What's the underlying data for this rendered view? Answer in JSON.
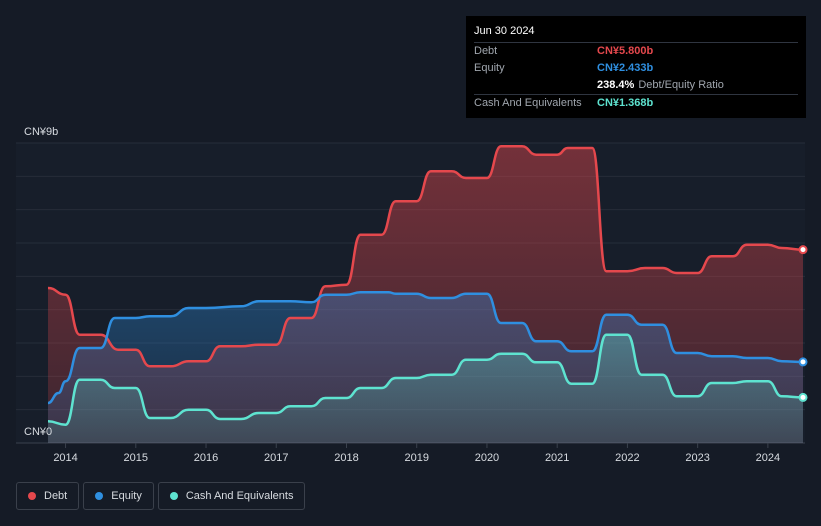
{
  "tooltip": {
    "date": "Jun 30 2024",
    "debt_label": "Debt",
    "debt_value": "CN¥5.800b",
    "equity_label": "Equity",
    "equity_value": "CN¥2.433b",
    "ratio_value": "238.4%",
    "ratio_label": "Debt/Equity Ratio",
    "cash_label": "Cash And Equivalents",
    "cash_value": "CN¥1.368b"
  },
  "legend": {
    "debt": "Debt",
    "equity": "Equity",
    "cash": "Cash And Equivalents"
  },
  "colors": {
    "debt": "#e5484d",
    "equity": "#2f8fe0",
    "cash": "#5ee3d0"
  },
  "chart_data": {
    "type": "area",
    "title": "",
    "xlabel": "",
    "ylabel": "",
    "y_top_label": "CN¥9b",
    "y_bottom_label": "CN¥0",
    "ylim": [
      0,
      9
    ],
    "xlim": [
      2013.75,
      2024.5
    ],
    "x_ticks": [
      "2014",
      "2015",
      "2016",
      "2017",
      "2018",
      "2019",
      "2020",
      "2021",
      "2022",
      "2023",
      "2024"
    ],
    "series": [
      {
        "name": "Debt",
        "points": [
          [
            2013.75,
            4.65
          ],
          [
            2014.0,
            4.45
          ],
          [
            2014.2,
            3.25
          ],
          [
            2014.5,
            3.25
          ],
          [
            2014.75,
            2.8
          ],
          [
            2015.0,
            2.8
          ],
          [
            2015.2,
            2.3
          ],
          [
            2015.5,
            2.3
          ],
          [
            2015.75,
            2.45
          ],
          [
            2016.0,
            2.45
          ],
          [
            2016.2,
            2.9
          ],
          [
            2016.5,
            2.9
          ],
          [
            2016.75,
            2.95
          ],
          [
            2017.0,
            2.95
          ],
          [
            2017.2,
            3.75
          ],
          [
            2017.5,
            3.75
          ],
          [
            2017.7,
            4.7
          ],
          [
            2018.0,
            4.75
          ],
          [
            2018.2,
            6.25
          ],
          [
            2018.5,
            6.25
          ],
          [
            2018.7,
            7.25
          ],
          [
            2019.0,
            7.25
          ],
          [
            2019.2,
            8.15
          ],
          [
            2019.5,
            8.15
          ],
          [
            2019.7,
            7.95
          ],
          [
            2020.0,
            7.95
          ],
          [
            2020.2,
            8.9
          ],
          [
            2020.5,
            8.9
          ],
          [
            2020.7,
            8.65
          ],
          [
            2021.0,
            8.65
          ],
          [
            2021.15,
            8.85
          ],
          [
            2021.5,
            8.85
          ],
          [
            2021.7,
            5.15
          ],
          [
            2022.0,
            5.15
          ],
          [
            2022.25,
            5.25
          ],
          [
            2022.5,
            5.25
          ],
          [
            2022.7,
            5.1
          ],
          [
            2023.0,
            5.1
          ],
          [
            2023.2,
            5.6
          ],
          [
            2023.5,
            5.6
          ],
          [
            2023.7,
            5.95
          ],
          [
            2024.0,
            5.95
          ],
          [
            2024.2,
            5.85
          ],
          [
            2024.5,
            5.8
          ]
        ]
      },
      {
        "name": "Equity",
        "points": [
          [
            2013.75,
            1.2
          ],
          [
            2013.9,
            1.5
          ],
          [
            2014.0,
            1.85
          ],
          [
            2014.2,
            2.85
          ],
          [
            2014.5,
            2.85
          ],
          [
            2014.7,
            3.75
          ],
          [
            2015.0,
            3.75
          ],
          [
            2015.2,
            3.8
          ],
          [
            2015.5,
            3.8
          ],
          [
            2015.75,
            4.05
          ],
          [
            2016.0,
            4.05
          ],
          [
            2016.5,
            4.1
          ],
          [
            2016.75,
            4.25
          ],
          [
            2017.2,
            4.25
          ],
          [
            2017.5,
            4.22
          ],
          [
            2017.7,
            4.45
          ],
          [
            2018.0,
            4.45
          ],
          [
            2018.2,
            4.52
          ],
          [
            2018.6,
            4.52
          ],
          [
            2018.7,
            4.48
          ],
          [
            2019.0,
            4.48
          ],
          [
            2019.2,
            4.35
          ],
          [
            2019.5,
            4.35
          ],
          [
            2019.7,
            4.48
          ],
          [
            2020.0,
            4.48
          ],
          [
            2020.2,
            3.6
          ],
          [
            2020.5,
            3.6
          ],
          [
            2020.7,
            3.05
          ],
          [
            2021.0,
            3.05
          ],
          [
            2021.2,
            2.75
          ],
          [
            2021.5,
            2.75
          ],
          [
            2021.7,
            3.85
          ],
          [
            2022.0,
            3.85
          ],
          [
            2022.2,
            3.55
          ],
          [
            2022.5,
            3.55
          ],
          [
            2022.7,
            2.7
          ],
          [
            2023.0,
            2.7
          ],
          [
            2023.2,
            2.6
          ],
          [
            2023.5,
            2.6
          ],
          [
            2023.7,
            2.55
          ],
          [
            2024.0,
            2.55
          ],
          [
            2024.2,
            2.45
          ],
          [
            2024.5,
            2.433
          ]
        ]
      },
      {
        "name": "Cash And Equivalents",
        "points": [
          [
            2013.75,
            0.65
          ],
          [
            2014.0,
            0.55
          ],
          [
            2014.2,
            1.9
          ],
          [
            2014.5,
            1.9
          ],
          [
            2014.7,
            1.65
          ],
          [
            2015.0,
            1.65
          ],
          [
            2015.2,
            0.75
          ],
          [
            2015.5,
            0.75
          ],
          [
            2015.75,
            1.0
          ],
          [
            2016.0,
            1.0
          ],
          [
            2016.2,
            0.72
          ],
          [
            2016.5,
            0.72
          ],
          [
            2016.75,
            0.9
          ],
          [
            2017.0,
            0.9
          ],
          [
            2017.2,
            1.1
          ],
          [
            2017.5,
            1.1
          ],
          [
            2017.7,
            1.35
          ],
          [
            2018.0,
            1.35
          ],
          [
            2018.2,
            1.65
          ],
          [
            2018.5,
            1.65
          ],
          [
            2018.7,
            1.95
          ],
          [
            2019.0,
            1.95
          ],
          [
            2019.2,
            2.05
          ],
          [
            2019.5,
            2.05
          ],
          [
            2019.7,
            2.5
          ],
          [
            2020.0,
            2.5
          ],
          [
            2020.2,
            2.68
          ],
          [
            2020.5,
            2.68
          ],
          [
            2020.7,
            2.42
          ],
          [
            2021.0,
            2.42
          ],
          [
            2021.2,
            1.78
          ],
          [
            2021.5,
            1.78
          ],
          [
            2021.7,
            3.25
          ],
          [
            2022.0,
            3.25
          ],
          [
            2022.2,
            2.05
          ],
          [
            2022.5,
            2.05
          ],
          [
            2022.7,
            1.4
          ],
          [
            2023.0,
            1.4
          ],
          [
            2023.2,
            1.8
          ],
          [
            2023.5,
            1.8
          ],
          [
            2023.7,
            1.85
          ],
          [
            2024.0,
            1.85
          ],
          [
            2024.2,
            1.4
          ],
          [
            2024.5,
            1.368
          ]
        ]
      }
    ]
  }
}
